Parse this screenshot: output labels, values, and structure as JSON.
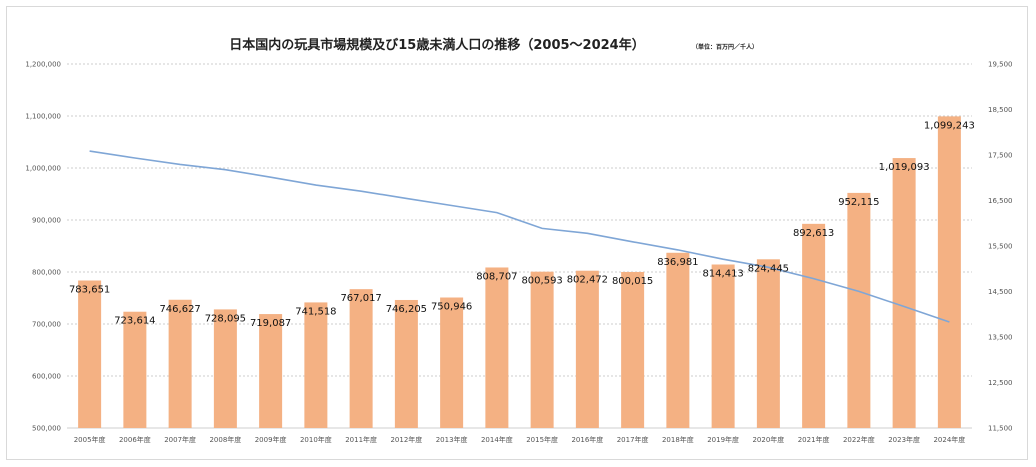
{
  "chart_data": {
    "type": "bar",
    "title": "日本国内の玩具市場規模及び15歳未満人口の推移（2005〜2024年）",
    "unit_note": "（単位：百万円／千人）",
    "categories": [
      "2005年度",
      "2006年度",
      "2007年度",
      "2008年度",
      "2009年度",
      "2010年度",
      "2011年度",
      "2012年度",
      "2013年度",
      "2014年度",
      "2015年度",
      "2016年度",
      "2017年度",
      "2018年度",
      "2019年度",
      "2020年度",
      "2021年度",
      "2022年度",
      "2023年度",
      "2024年度"
    ],
    "series": [
      {
        "type": "bar",
        "axis": "left",
        "color": "#f4b183",
        "values": [
          783651,
          723614,
          746627,
          728095,
          719087,
          741518,
          767017,
          746205,
          750946,
          808707,
          800593,
          802472,
          800015,
          836981,
          814413,
          824445,
          892613,
          952115,
          1019093,
          1099243
        ],
        "data_labels": [
          "783,651",
          "723,614",
          "746,627",
          "728,095",
          "719,087",
          "741,518",
          "767,017",
          "746,205",
          "750,946",
          "808,707",
          "800,593",
          "802,472",
          "800,015",
          "836,981",
          "814,413",
          "824,445",
          "892,613",
          "952,115",
          "1,019,093",
          "1,099,243"
        ]
      },
      {
        "type": "line",
        "axis": "right",
        "color": "#7fa6d6",
        "values": [
          17585,
          17435,
          17293,
          17176,
          17011,
          16839,
          16705,
          16547,
          16390,
          16233,
          15887,
          15780,
          15592,
          15415,
          15210,
          15032,
          14784,
          14503,
          14170,
          13830
        ]
      }
    ],
    "ylim_left": [
      500000,
      1200000
    ],
    "yticks_left": [
      "500,000",
      "600,000",
      "700,000",
      "800,000",
      "900,000",
      "1,000,000",
      "1,100,000",
      "1,200,000"
    ],
    "ylim_right": [
      11500,
      19500
    ],
    "yticks_right": [
      "11,500",
      "12,500",
      "13,500",
      "14,500",
      "15,500",
      "16,500",
      "17,500",
      "18,500",
      "19,500"
    ],
    "grid": true,
    "legend": "none",
    "gridline_color": "#bfbfbf"
  }
}
